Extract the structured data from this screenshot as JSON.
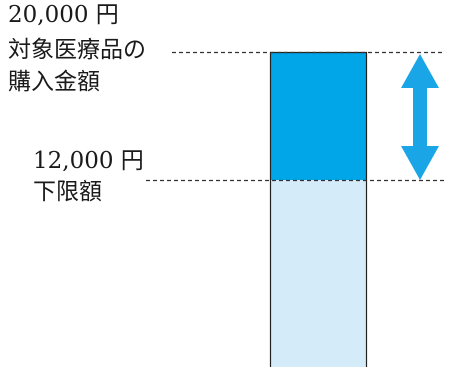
{
  "labels": {
    "top_amount": "20,000 円",
    "top_line1": "対象医療品の",
    "top_line2": "購入金額",
    "lower_amount": "12,000 円",
    "lower_label": "下限額"
  },
  "colors": {
    "upper_block": "#00a6e8",
    "lower_block": "#d4ecfa",
    "arrow": "#1aa5e6",
    "outline": "#222222",
    "dashed_line": "#333333"
  },
  "values": {
    "purchase_amount": 20000,
    "lower_limit": 12000
  }
}
